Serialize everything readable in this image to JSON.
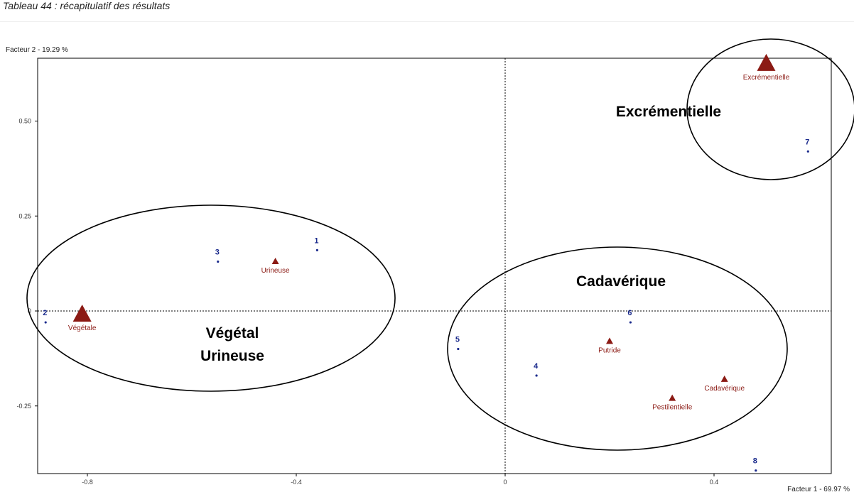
{
  "caption": "Tableau 44 : récapitulatif des résultats",
  "chart_data": {
    "type": "scatter",
    "xlabel": "Facteur 1  -  69.97 %",
    "ylabel": "Facteur 2  -  19.29 %",
    "xlim": [
      -0.88,
      0.58
    ],
    "ylim": [
      -0.42,
      0.66
    ],
    "xticks": [
      "-0.8",
      "-0.4",
      "0",
      "0.4"
    ],
    "xtick_values": [
      -0.8,
      -0.4,
      0,
      0.4
    ],
    "yticks": [
      "0.50",
      "0.25",
      "0",
      "-0.25"
    ],
    "ytick_values": [
      0.5,
      0.25,
      0,
      -0.25
    ],
    "grid": false,
    "reference_lines": [
      0,
      0
    ],
    "series": [
      {
        "points": [
          {
            "label": "1",
            "x": -0.36,
            "y": 0.16
          },
          {
            "label": "2",
            "x": -0.88,
            "y": -0.03
          },
          {
            "label": "3",
            "x": -0.55,
            "y": 0.13
          },
          {
            "label": "4",
            "x": 0.06,
            "y": -0.17
          },
          {
            "label": "5",
            "x": -0.09,
            "y": -0.1
          },
          {
            "label": "6",
            "x": 0.24,
            "y": -0.03
          },
          {
            "label": "7",
            "x": 0.58,
            "y": 0.42
          },
          {
            "label": "8",
            "x": 0.48,
            "y": -0.42
          }
        ]
      },
      {
        "points": [
          {
            "label": "Végétale",
            "x": -0.81,
            "y": -0.01,
            "size": "large"
          },
          {
            "label": "Urineuse",
            "x": -0.44,
            "y": 0.13,
            "size": "small"
          },
          {
            "label": "Putride",
            "x": 0.2,
            "y": -0.08,
            "size": "small"
          },
          {
            "label": "Cadavérique",
            "x": 0.42,
            "y": -0.18,
            "size": "small"
          },
          {
            "label": "Pestilentielle",
            "x": 0.32,
            "y": -0.23,
            "size": "small"
          },
          {
            "label": "Excrémentielle",
            "x": 0.5,
            "y": 0.65,
            "size": "large"
          }
        ]
      }
    ],
    "groups": [
      {
        "label": "Végétal\nUrineuse",
        "lines": [
          "Végétal",
          "Urineuse"
        ]
      },
      {
        "label": "Cadavérique",
        "lines": [
          "Cadavérique"
        ]
      },
      {
        "label": "Excrémentielle",
        "lines": [
          "Excrémentielle"
        ]
      }
    ],
    "colors": {
      "individuals": "#1a2a8c",
      "modalities": "#8b1a14",
      "axes": "#000000"
    }
  }
}
